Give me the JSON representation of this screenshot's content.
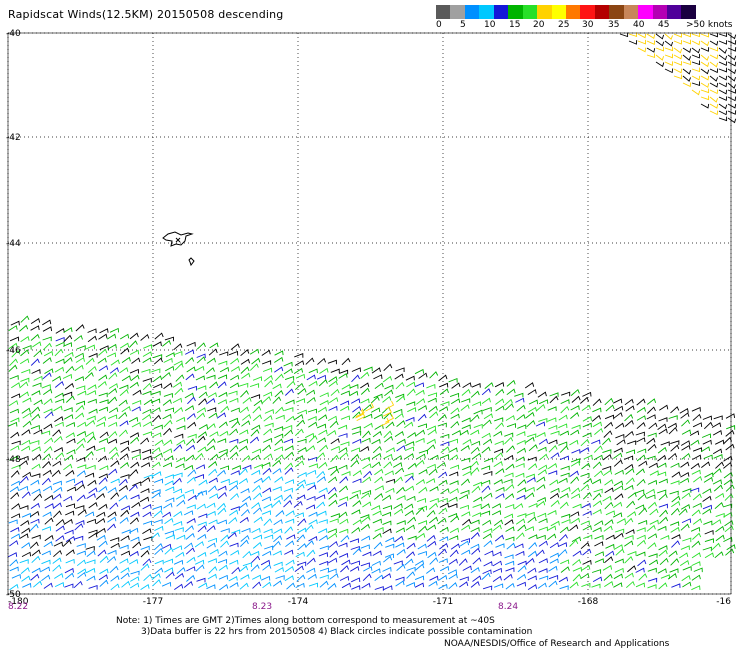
{
  "header": {
    "title": "Rapidscat Winds(12.5KM) 20150508 descending"
  },
  "legend": {
    "colors": [
      "#5a5a5a",
      "#a0a0a0",
      "#0090ff",
      "#00c8ff",
      "#1418d8",
      "#00b400",
      "#28e028",
      "#ffd200",
      "#ffff00",
      "#ff7800",
      "#ff1414",
      "#b40000",
      "#8b4513",
      "#c8865a",
      "#ff00ff",
      "#b400b4",
      "#50009a",
      "#1a0040"
    ],
    "labels": [
      "0",
      "5",
      "10",
      "15",
      "20",
      "25",
      "30",
      "35",
      "40",
      "45",
      ">50 knots"
    ]
  },
  "map": {
    "lat_labels": [
      "-40",
      "-42",
      "-44",
      "-46",
      "-48",
      "-50"
    ],
    "lon_labels": [
      "-180",
      "-177",
      "-174",
      "-171",
      "-168",
      "-16"
    ],
    "time_labels": [
      "8.22",
      "8.23",
      "8.24"
    ],
    "time_color": "#8b1a8b"
  },
  "footer": {
    "note_line1": "Note: 1) Times are GMT 2)Times along bottom correspond to measurement at ~40S",
    "note_line2": "3)Data buffer is 22 hrs from 20150508 4) Black circles indicate possible contamination",
    "credit": "NOAA/NESDIS/Office of Research and Applications"
  }
}
